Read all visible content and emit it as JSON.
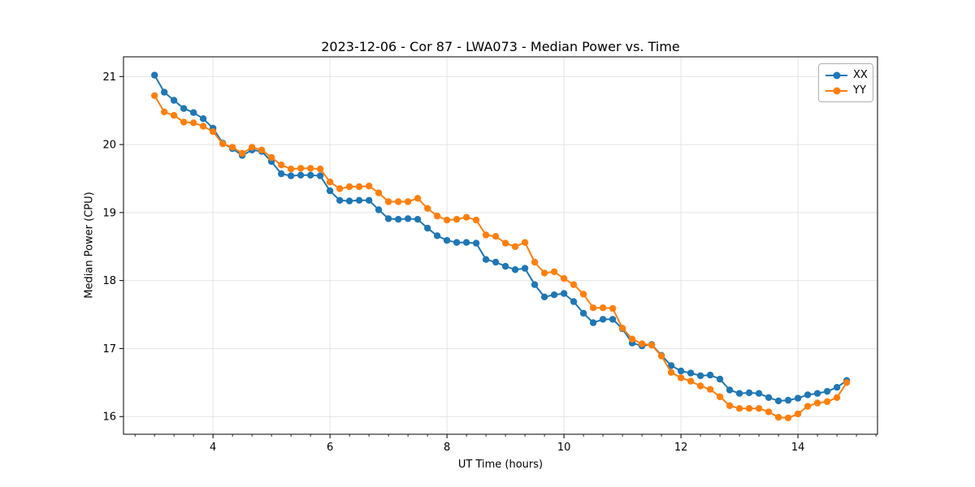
{
  "chart_data": {
    "type": "line",
    "title": "2023-12-06 - Cor 87 - LWA073 - Median Power vs. Time",
    "xlabel": "UT Time (hours)",
    "ylabel": "Median Power (CPU)",
    "xlim": [
      2.47,
      15.36
    ],
    "ylim": [
      15.74,
      21.29
    ],
    "grid": true,
    "legend_position": "upper right",
    "xticks": [
      4,
      6,
      8,
      10,
      12,
      14
    ],
    "xtick_labels": [
      "4",
      "6",
      "8",
      "10",
      "12",
      "14"
    ],
    "yticks": [
      16,
      17,
      18,
      19,
      20,
      21
    ],
    "ytick_labels": [
      "16",
      "17",
      "18",
      "19",
      "20",
      "21"
    ],
    "x": [
      3,
      3.167,
      3.333,
      3.5,
      3.667,
      3.833,
      4,
      4.167,
      4.333,
      4.5,
      4.667,
      4.833,
      5,
      5.167,
      5.333,
      5.5,
      5.667,
      5.833,
      6,
      6.167,
      6.333,
      6.5,
      6.667,
      6.833,
      7,
      7.167,
      7.333,
      7.5,
      7.667,
      7.833,
      8,
      8.167,
      8.333,
      8.5,
      8.667,
      8.833,
      9,
      9.167,
      9.333,
      9.5,
      9.667,
      9.833,
      10,
      10.167,
      10.333,
      10.5,
      10.667,
      10.833,
      11,
      11.167,
      11.333,
      11.5,
      11.667,
      11.833,
      12,
      12.167,
      12.333,
      12.5,
      12.667,
      12.833,
      13,
      13.167,
      13.333,
      13.5,
      13.667,
      13.833,
      14,
      14.167,
      14.333,
      14.5,
      14.667,
      14.833
    ],
    "series": [
      {
        "name": "XX",
        "color": "#1f77b4",
        "marker": "circle",
        "values": [
          21.02,
          20.77,
          20.65,
          20.53,
          20.47,
          20.38,
          20.24,
          20.02,
          19.94,
          19.84,
          19.92,
          19.9,
          19.75,
          19.57,
          19.54,
          19.55,
          19.55,
          19.54,
          19.32,
          19.18,
          19.17,
          19.18,
          19.18,
          19.04,
          18.91,
          18.9,
          18.91,
          18.9,
          18.77,
          18.66,
          18.59,
          18.56,
          18.56,
          18.55,
          18.31,
          18.27,
          18.21,
          18.16,
          18.18,
          17.94,
          17.76,
          17.79,
          17.81,
          17.69,
          17.52,
          17.38,
          17.43,
          17.43,
          17.29,
          17.08,
          17.04,
          17.06,
          16.9,
          16.75,
          16.67,
          16.64,
          16.6,
          16.61,
          16.55,
          16.39,
          16.34,
          16.35,
          16.34,
          16.28,
          16.23,
          16.24,
          16.27,
          16.32,
          16.34,
          16.37,
          16.43,
          16.53
        ]
      },
      {
        "name": "YY",
        "color": "#ff7f0e",
        "marker": "circle",
        "values": [
          20.72,
          20.48,
          20.43,
          20.33,
          20.32,
          20.27,
          20.19,
          20.01,
          19.96,
          19.87,
          19.96,
          19.92,
          19.81,
          19.7,
          19.64,
          19.65,
          19.65,
          19.64,
          19.45,
          19.35,
          19.38,
          19.38,
          19.39,
          19.29,
          19.16,
          19.16,
          19.16,
          19.21,
          19.06,
          18.95,
          18.89,
          18.9,
          18.93,
          18.89,
          18.67,
          18.65,
          18.55,
          18.5,
          18.56,
          18.27,
          18.11,
          18.13,
          18.03,
          17.94,
          17.8,
          17.6,
          17.6,
          17.59,
          17.3,
          17.14,
          17.07,
          17.05,
          16.89,
          16.65,
          16.57,
          16.52,
          16.45,
          16.4,
          16.29,
          16.16,
          16.12,
          16.12,
          16.12,
          16.07,
          15.99,
          15.98,
          16.04,
          16.15,
          16.2,
          16.22,
          16.28,
          16.5
        ]
      }
    ],
    "colors": {
      "grid": "#e4e4e4",
      "spine": "#000000",
      "text": "#000000",
      "legend_border": "#b0b0b0",
      "background": "#ffffff"
    }
  }
}
